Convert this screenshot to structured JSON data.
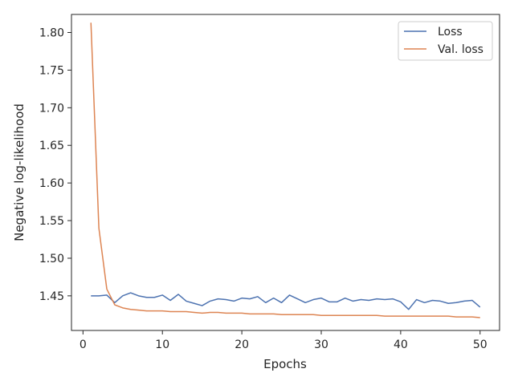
{
  "chart_data": {
    "type": "line",
    "title": "",
    "xlabel": "Epochs",
    "ylabel": "Negative log-likelihood",
    "xlim": [
      -1.45,
      52.45
    ],
    "ylim": [
      1.404,
      1.824
    ],
    "x_ticks": [
      0,
      10,
      20,
      30,
      40,
      50
    ],
    "y_ticks": [
      1.45,
      1.5,
      1.55,
      1.6,
      1.65,
      1.7,
      1.75,
      1.8
    ],
    "grid": false,
    "legend_position": "top-right",
    "x": [
      1,
      2,
      3,
      4,
      5,
      6,
      7,
      8,
      9,
      10,
      11,
      12,
      13,
      14,
      15,
      16,
      17,
      18,
      19,
      20,
      21,
      22,
      23,
      24,
      25,
      26,
      27,
      28,
      29,
      30,
      31,
      32,
      33,
      34,
      35,
      36,
      37,
      38,
      39,
      40,
      41,
      42,
      43,
      44,
      45,
      46,
      47,
      48,
      49,
      50
    ],
    "series": [
      {
        "name": "Loss",
        "color": "#4c72b0",
        "values": [
          1.45,
          1.45,
          1.451,
          1.441,
          1.45,
          1.454,
          1.45,
          1.448,
          1.448,
          1.451,
          1.444,
          1.452,
          1.443,
          1.44,
          1.437,
          1.443,
          1.446,
          1.445,
          1.443,
          1.447,
          1.446,
          1.449,
          1.441,
          1.447,
          1.441,
          1.451,
          1.446,
          1.441,
          1.445,
          1.447,
          1.442,
          1.442,
          1.447,
          1.443,
          1.445,
          1.444,
          1.446,
          1.445,
          1.446,
          1.442,
          1.432,
          1.445,
          1.441,
          1.444,
          1.443,
          1.44,
          1.441,
          1.443,
          1.444,
          1.435
        ]
      },
      {
        "name": "Val. loss",
        "color": "#dd8452",
        "values": [
          1.813,
          1.54,
          1.459,
          1.438,
          1.434,
          1.432,
          1.431,
          1.43,
          1.43,
          1.43,
          1.429,
          1.429,
          1.429,
          1.428,
          1.427,
          1.428,
          1.428,
          1.427,
          1.427,
          1.427,
          1.426,
          1.426,
          1.426,
          1.426,
          1.425,
          1.425,
          1.425,
          1.425,
          1.425,
          1.424,
          1.424,
          1.424,
          1.424,
          1.424,
          1.424,
          1.424,
          1.424,
          1.423,
          1.423,
          1.423,
          1.423,
          1.423,
          1.423,
          1.423,
          1.423,
          1.423,
          1.422,
          1.422,
          1.422,
          1.421
        ]
      }
    ]
  }
}
